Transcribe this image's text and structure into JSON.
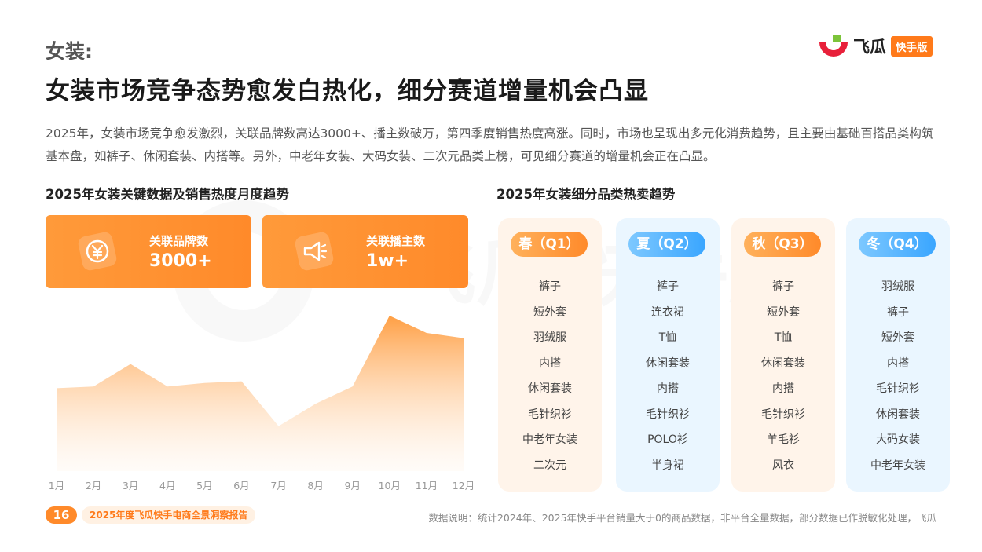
{
  "section_label": "女装:",
  "headline": "女装市场竞争态势愈发白热化，细分赛道增量机会凸显",
  "intro": "2025年，女装市场竞争愈发激烈，关联品牌数高达3000+、播主数破万，第四季度销售热度高涨。同时，市场也呈现出多元化消费趋势，且主要由基础百搭品类构筑基本盘，如裤子、休闲套装、内搭等。另外，中老年女装、大码女装、二次元品类上榜，可见细分赛道的增量机会正在凸显。",
  "logo": {
    "text": "飞瓜",
    "badge": "快手版",
    "icon": "feigua-logo-icon"
  },
  "watermark": {
    "text": "飞瓜 快手版",
    "icon": "feigua-watermark-icon"
  },
  "left_panel": {
    "title": "2025年女装关键数据及销售热度月度趋势",
    "cards": [
      {
        "label": "关联品牌数",
        "value": "3000+",
        "icon": "yuan-coin-icon"
      },
      {
        "label": "关联播主数",
        "value": "1w+",
        "icon": "megaphone-icon"
      }
    ]
  },
  "chart_data": {
    "type": "area",
    "categories": [
      "1月",
      "2月",
      "3月",
      "4月",
      "5月",
      "6月",
      "7月",
      "8月",
      "9月",
      "10月",
      "11月",
      "12月"
    ],
    "series": [
      {
        "values": [
          48,
          49,
          62,
          49,
          51,
          52,
          26,
          39,
          49,
          90,
          80,
          77
        ]
      }
    ],
    "ylim": [
      0,
      100
    ],
    "title": "",
    "xlabel": "",
    "ylabel": "",
    "grid": false,
    "color": "#ff9a3a"
  },
  "right_panel": {
    "title": "2025年女装细分品类热卖趋势",
    "seasons": [
      {
        "label": "春（Q1）",
        "theme": "orange",
        "items": [
          "裤子",
          "短外套",
          "羽绒服",
          "内搭",
          "休闲套装",
          "毛针织衫",
          "中老年女装",
          "二次元"
        ]
      },
      {
        "label": "夏（Q2）",
        "theme": "blue",
        "items": [
          "裤子",
          "连衣裙",
          "T恤",
          "休闲套装",
          "内搭",
          "毛针织衫",
          "POLO衫",
          "半身裙"
        ]
      },
      {
        "label": "秋（Q3）",
        "theme": "orange",
        "items": [
          "裤子",
          "短外套",
          "T恤",
          "休闲套装",
          "内搭",
          "毛针织衫",
          "羊毛衫",
          "风衣"
        ]
      },
      {
        "label": "冬（Q4）",
        "theme": "blue",
        "items": [
          "羽绒服",
          "裤子",
          "短外套",
          "内搭",
          "毛针织衫",
          "休闲套装",
          "大码女装",
          "中老年女装"
        ]
      }
    ]
  },
  "footer": {
    "page": "16",
    "report": "2025年度飞瓜快手电商全景洞察报告",
    "note": "数据说明：统计2024年、2025年快手平台销量大于0的商品数据，非平台全量数据，部分数据已作脱敏化处理，飞瓜"
  }
}
